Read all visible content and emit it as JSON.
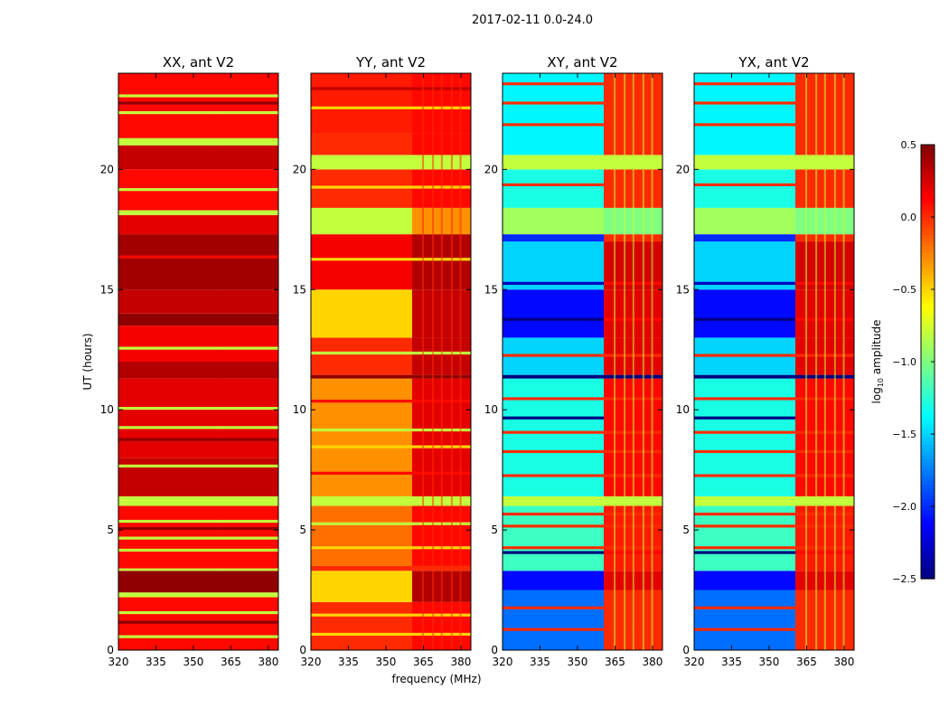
{
  "chart_data": {
    "type": "heatmap",
    "title": "2017-02-11 0.0-24.0",
    "xlabel": "frequency (MHz)",
    "ylabel": "UT (hours)",
    "xlim": [
      320,
      384
    ],
    "ylim": [
      0,
      24
    ],
    "xticks": [
      "320",
      "335",
      "350",
      "365",
      "380"
    ],
    "xtick_values": [
      320,
      335,
      350,
      365,
      380
    ],
    "yticks": [
      "0",
      "5",
      "10",
      "15",
      "20"
    ],
    "ytick_values": [
      0,
      5,
      10,
      15,
      20
    ],
    "rfi_band_start_mhz": 360.5,
    "colorbar": {
      "label_main": "log",
      "label_sub": "10",
      "label_tail": " amplitude",
      "vmin": -2.5,
      "vmax": 0.5,
      "ticks": [
        "0.5",
        "0.0",
        "−0.5",
        "−1.0",
        "−1.5",
        "−2.0",
        "−2.5"
      ],
      "tick_values": [
        0.5,
        0.0,
        -0.5,
        -1.0,
        -1.5,
        -2.0,
        -2.5
      ],
      "colormap": "jet"
    },
    "panels": [
      {
        "title": "XX, ant V2",
        "segments": [
          [
            0,
            2.2,
            0.1,
            0.1
          ],
          [
            2.2,
            2.4,
            -0.8,
            -0.8
          ],
          [
            2.4,
            3.3,
            0.45,
            0.45
          ],
          [
            3.3,
            3.4,
            -0.8,
            -0.8
          ],
          [
            3.4,
            6.0,
            0.1,
            0.1
          ],
          [
            6.0,
            6.4,
            -0.8,
            -0.8
          ],
          [
            6.4,
            8.0,
            0.3,
            0.3
          ],
          [
            8.0,
            11.3,
            0.2,
            0.2
          ],
          [
            11.3,
            12.0,
            0.35,
            0.35
          ],
          [
            12.0,
            13.5,
            0.15,
            0.15
          ],
          [
            13.5,
            14.0,
            0.45,
            0.45
          ],
          [
            14.0,
            15.0,
            0.3,
            0.3
          ],
          [
            15.0,
            17.3,
            0.4,
            0.4
          ],
          [
            17.3,
            18.1,
            0.2,
            0.2
          ],
          [
            18.1,
            18.3,
            -0.8,
            -0.8
          ],
          [
            18.3,
            20.0,
            0.1,
            0.1
          ],
          [
            20.0,
            21.0,
            0.3,
            0.3
          ],
          [
            21.0,
            21.3,
            -0.8,
            -0.8
          ],
          [
            21.3,
            24,
            0.1,
            0.1
          ]
        ],
        "stripes": [
          [
            0.5,
            -0.8
          ],
          [
            1.5,
            -0.8
          ],
          [
            4.1,
            -0.8
          ],
          [
            4.6,
            -0.8
          ],
          [
            5.3,
            -0.8
          ],
          [
            7.6,
            -0.8
          ],
          [
            9.2,
            -0.8
          ],
          [
            10.0,
            -0.8
          ],
          [
            12.5,
            -0.8
          ],
          [
            19.1,
            -0.8
          ],
          [
            22.3,
            -0.8
          ],
          [
            23.0,
            -0.8
          ],
          [
            1.1,
            0.45
          ],
          [
            5.0,
            0.45
          ],
          [
            8.7,
            0.45
          ],
          [
            16.3,
            0.1
          ],
          [
            22.7,
            0.45
          ]
        ]
      },
      {
        "title": "YY, ant V2",
        "segments": [
          [
            0,
            2,
            0.0,
            0.1
          ],
          [
            2,
            3.3,
            -0.5,
            0.35
          ],
          [
            3.3,
            3.5,
            0.0,
            0.0
          ],
          [
            3.5,
            6,
            -0.2,
            0.1
          ],
          [
            6,
            6.4,
            -0.8,
            -0.8
          ],
          [
            6.4,
            11.3,
            -0.3,
            0.2
          ],
          [
            11.3,
            11.45,
            0.45,
            0.45
          ],
          [
            11.45,
            13,
            0.0,
            0.3
          ],
          [
            13,
            15,
            -0.5,
            0.3
          ],
          [
            15,
            17.3,
            0.15,
            0.35
          ],
          [
            17.3,
            18.4,
            -0.8,
            -0.3
          ],
          [
            18.4,
            20,
            0.0,
            0.1
          ],
          [
            20,
            20.6,
            -0.8,
            -0.8
          ],
          [
            20.6,
            21.5,
            0.0,
            0.1
          ],
          [
            21.5,
            24,
            0.05,
            0.1
          ]
        ],
        "stripes": [
          [
            0.6,
            -0.5
          ],
          [
            1.4,
            -0.5
          ],
          [
            4.2,
            -0.5
          ],
          [
            5.2,
            -0.8
          ],
          [
            7.3,
            0.1
          ],
          [
            8.4,
            -0.5
          ],
          [
            9.1,
            -0.8
          ],
          [
            10.3,
            0.1
          ],
          [
            12.3,
            -0.8
          ],
          [
            16.2,
            -0.5
          ],
          [
            19.2,
            -0.5
          ],
          [
            22.5,
            -0.5
          ],
          [
            23.3,
            0.3
          ]
        ]
      },
      {
        "title": "XY, ant V2",
        "segments": [
          [
            0,
            2.5,
            -1.8,
            0.0
          ],
          [
            2.5,
            3.3,
            -2.1,
            0.2
          ],
          [
            3.3,
            6.0,
            -1.2,
            0.05
          ],
          [
            6.0,
            6.4,
            -0.8,
            -0.8
          ],
          [
            6.4,
            11.3,
            -1.3,
            0.1
          ],
          [
            11.3,
            11.45,
            -2.5,
            -2.5
          ],
          [
            11.45,
            13,
            -1.5,
            0.2
          ],
          [
            13,
            15,
            -2.1,
            0.2
          ],
          [
            15,
            17,
            -1.5,
            0.25
          ],
          [
            17,
            17.3,
            -2.0,
            0.0
          ],
          [
            17.3,
            18.4,
            -0.9,
            -1.0
          ],
          [
            18.4,
            20,
            -1.3,
            0.0
          ],
          [
            20,
            20.6,
            -0.8,
            -0.8
          ],
          [
            20.6,
            24,
            -1.4,
            0.0
          ]
        ],
        "stripes": [
          [
            0.8,
            0.0
          ],
          [
            1.7,
            0.0
          ],
          [
            4.2,
            0.0
          ],
          [
            5.1,
            0.0
          ],
          [
            5.6,
            0.0
          ],
          [
            7.2,
            0.0
          ],
          [
            8.2,
            0.0
          ],
          [
            9.0,
            0.0
          ],
          [
            10.4,
            0.0
          ],
          [
            12.2,
            0.0
          ],
          [
            19.3,
            0.0
          ],
          [
            21.8,
            0.0
          ],
          [
            22.7,
            0.0
          ],
          [
            23.5,
            0.0
          ],
          [
            4.0,
            -2.5
          ],
          [
            9.6,
            -2.5
          ],
          [
            13.7,
            -2.5
          ],
          [
            15.2,
            -2.3
          ]
        ]
      },
      {
        "title": "YX, ant V2",
        "segments": [
          [
            0,
            2.5,
            -1.8,
            0.0
          ],
          [
            2.5,
            3.3,
            -2.1,
            0.2
          ],
          [
            3.3,
            6.0,
            -1.2,
            0.05
          ],
          [
            6.0,
            6.4,
            -0.8,
            -0.8
          ],
          [
            6.4,
            11.3,
            -1.3,
            0.1
          ],
          [
            11.3,
            11.45,
            -2.5,
            -2.5
          ],
          [
            11.45,
            13,
            -1.5,
            0.2
          ],
          [
            13,
            15,
            -2.1,
            0.2
          ],
          [
            15,
            17,
            -1.5,
            0.25
          ],
          [
            17,
            17.3,
            -2.0,
            0.0
          ],
          [
            17.3,
            18.4,
            -0.9,
            -1.0
          ],
          [
            18.4,
            20,
            -1.3,
            0.0
          ],
          [
            20,
            20.6,
            -0.8,
            -0.8
          ],
          [
            20.6,
            24,
            -1.4,
            0.0
          ]
        ],
        "stripes": [
          [
            0.8,
            0.0
          ],
          [
            1.7,
            0.0
          ],
          [
            4.2,
            0.0
          ],
          [
            5.1,
            0.0
          ],
          [
            5.6,
            0.0
          ],
          [
            7.2,
            0.0
          ],
          [
            8.2,
            0.0
          ],
          [
            9.0,
            0.0
          ],
          [
            10.4,
            0.0
          ],
          [
            12.2,
            0.0
          ],
          [
            19.3,
            0.0
          ],
          [
            21.8,
            0.0
          ],
          [
            22.7,
            0.0
          ],
          [
            23.5,
            0.0
          ],
          [
            4.0,
            -2.5
          ],
          [
            9.6,
            -2.5
          ],
          [
            13.7,
            -2.5
          ],
          [
            15.2,
            -2.3
          ]
        ]
      }
    ]
  }
}
